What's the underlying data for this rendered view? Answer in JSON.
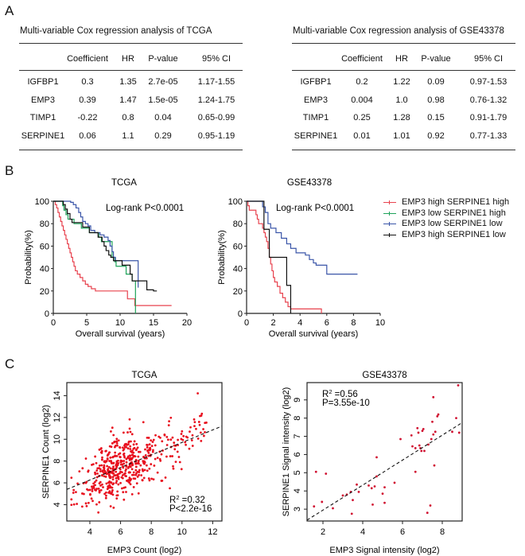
{
  "panels": {
    "a": "A",
    "b": "B",
    "c": "C"
  },
  "tables": [
    {
      "title": "Multi-variable Cox regression analysis of TCGA",
      "columns": [
        "",
        "Coefficient",
        "HR",
        "P-value",
        "95% CI"
      ],
      "rows": [
        [
          "IGFBP1",
          "0.3",
          "1.35",
          "2.7e-05",
          "1.17-1.55"
        ],
        [
          "EMP3",
          "0.39",
          "1.47",
          "1.5e-05",
          "1.24-1.75"
        ],
        [
          "TIMP1",
          "-0.22",
          "0.8",
          "0.04",
          "0.65-0.99"
        ],
        [
          "SERPINE1",
          "0.06",
          "1.1",
          "0.29",
          "0.95-1.19"
        ]
      ]
    },
    {
      "title": "Multi-variable Cox regression analysis of GSE43378",
      "columns": [
        "",
        "Coefficient",
        "HR",
        "P-value",
        "95% CI"
      ],
      "rows": [
        [
          "IGFBP1",
          "0.2",
          "1.22",
          "0.09",
          "0.97-1.53"
        ],
        [
          "EMP3",
          "0.004",
          "1.0",
          "0.98",
          "0.76-1.32"
        ],
        [
          "TIMP1",
          "0.25",
          "1.28",
          "0.15",
          "0.91-1.79"
        ],
        [
          "SERPINE1",
          "0.01",
          "1.01",
          "0.92",
          "0.77-1.33"
        ]
      ]
    }
  ],
  "legend": [
    {
      "label": "EMP3 high SERPINE1 high",
      "color": "#e8434f"
    },
    {
      "label": "EMP3 low SERPINE1 high",
      "color": "#1fa35a"
    },
    {
      "label": "EMP3 low SERPINE1 low",
      "color": "#3a55a8"
    },
    {
      "label": "EMP3 high SERPINE1 low",
      "color": "#111111"
    }
  ],
  "chart_data": [
    {
      "type": "line",
      "subtype": "kaplan-meier",
      "title": "TCGA",
      "annotation": "Log-rank P<0.0001",
      "xlabel": "Overall survival (years)",
      "ylabel": "Probability(%)",
      "xlim": [
        0,
        20
      ],
      "ylim": [
        0,
        100
      ],
      "xticks": [
        0,
        5,
        10,
        15,
        20
      ],
      "yticks": [
        0,
        20,
        40,
        60,
        80,
        100
      ],
      "series": [
        {
          "name": "EMP3 high SERPINE1 high",
          "color": "#e8434f",
          "points": [
            [
              0,
              100
            ],
            [
              0.3,
              97
            ],
            [
              0.5,
              94
            ],
            [
              0.7,
              90
            ],
            [
              0.9,
              86
            ],
            [
              1.1,
              82
            ],
            [
              1.3,
              78
            ],
            [
              1.5,
              74
            ],
            [
              1.7,
              70
            ],
            [
              1.9,
              66
            ],
            [
              2.1,
              62
            ],
            [
              2.3,
              58
            ],
            [
              2.5,
              54
            ],
            [
              2.7,
              50
            ],
            [
              2.9,
              46
            ],
            [
              3.1,
              42
            ],
            [
              3.3,
              38
            ],
            [
              3.6,
              35
            ],
            [
              4.0,
              32
            ],
            [
              4.4,
              29
            ],
            [
              4.8,
              26
            ],
            [
              5.2,
              24
            ],
            [
              5.7,
              22
            ],
            [
              6.3,
              20
            ],
            [
              11.1,
              20
            ],
            [
              11.1,
              13
            ],
            [
              12.2,
              13
            ],
            [
              12.2,
              7
            ],
            [
              17.7,
              7
            ]
          ]
        },
        {
          "name": "EMP3 low SERPINE1 high",
          "color": "#1fa35a",
          "points": [
            [
              0,
              100
            ],
            [
              1.2,
              100
            ],
            [
              1.4,
              96
            ],
            [
              1.6,
              92
            ],
            [
              1.9,
              88
            ],
            [
              2.2,
              84
            ],
            [
              2.8,
              84
            ],
            [
              3.1,
              80
            ],
            [
              4.0,
              80
            ],
            [
              4.2,
              76
            ],
            [
              5.2,
              76
            ],
            [
              5.4,
              72
            ],
            [
              6.6,
              72
            ],
            [
              6.8,
              68
            ],
            [
              7.2,
              64
            ],
            [
              8.6,
              64
            ],
            [
              8.8,
              50
            ],
            [
              9.2,
              46
            ],
            [
              9.4,
              42
            ],
            [
              10.9,
              42
            ],
            [
              10.9,
              35
            ],
            [
              11.8,
              35
            ],
            [
              11.8,
              29
            ],
            [
              12.3,
              29
            ],
            [
              12.3,
              0
            ]
          ]
        },
        {
          "name": "EMP3 low SERPINE1 low",
          "color": "#3a55a8",
          "points": [
            [
              0,
              100
            ],
            [
              2.0,
              100
            ],
            [
              2.6,
              99
            ],
            [
              3.0,
              97
            ],
            [
              3.4,
              94
            ],
            [
              3.8,
              90
            ],
            [
              4.1,
              86
            ],
            [
              4.4,
              82
            ],
            [
              4.8,
              80
            ],
            [
              5.2,
              78
            ],
            [
              5.6,
              74
            ],
            [
              6.2,
              72
            ],
            [
              7.0,
              70
            ],
            [
              7.6,
              68
            ],
            [
              8.2,
              65
            ],
            [
              8.5,
              60
            ],
            [
              8.8,
              55
            ],
            [
              9.0,
              50
            ],
            [
              9.3,
              47
            ],
            [
              12.7,
              47
            ],
            [
              12.7,
              23
            ]
          ]
        },
        {
          "name": "EMP3 high SERPINE1 low",
          "color": "#111111",
          "points": [
            [
              0,
              100
            ],
            [
              1.5,
              97
            ],
            [
              1.8,
              93
            ],
            [
              2.1,
              89
            ],
            [
              2.5,
              84
            ],
            [
              2.8,
              81
            ],
            [
              4.1,
              81
            ],
            [
              4.4,
              77
            ],
            [
              5.4,
              72
            ],
            [
              6.4,
              72
            ],
            [
              6.7,
              68
            ],
            [
              7.3,
              64
            ],
            [
              7.6,
              60
            ],
            [
              7.9,
              56
            ],
            [
              8.3,
              52
            ],
            [
              8.6,
              50
            ],
            [
              9.0,
              47
            ],
            [
              10.0,
              47
            ],
            [
              10.3,
              43
            ],
            [
              11.3,
              43
            ],
            [
              11.5,
              35
            ],
            [
              11.8,
              29
            ],
            [
              14.0,
              29
            ],
            [
              14.0,
              21
            ],
            [
              15.0,
              21
            ],
            [
              15.0,
              20
            ],
            [
              15.5,
              20
            ]
          ]
        }
      ]
    },
    {
      "type": "line",
      "subtype": "kaplan-meier",
      "title": "GSE43378",
      "annotation": "Log-rank P<0.0001",
      "xlabel": "Overall survival (years)",
      "ylabel": "Probability(%)",
      "xlim": [
        0,
        10
      ],
      "ylim": [
        0,
        100
      ],
      "xticks": [
        0,
        2,
        4,
        6,
        8,
        10
      ],
      "yticks": [
        0,
        20,
        40,
        60,
        80,
        100
      ],
      "series": [
        {
          "name": "EMP3 high SERPINE1 high",
          "color": "#e8434f",
          "points": [
            [
              0,
              100
            ],
            [
              0.1,
              96
            ],
            [
              0.2,
              92
            ],
            [
              0.6,
              92
            ],
            [
              0.7,
              88
            ],
            [
              0.8,
              84
            ],
            [
              0.9,
              80
            ],
            [
              1.1,
              80
            ],
            [
              1.2,
              76
            ],
            [
              1.3,
              72
            ],
            [
              1.4,
              68
            ],
            [
              1.5,
              64
            ],
            [
              1.6,
              58
            ],
            [
              1.7,
              50
            ],
            [
              1.8,
              44
            ],
            [
              1.9,
              38
            ],
            [
              2.0,
              32
            ],
            [
              2.1,
              28
            ],
            [
              2.3,
              24
            ],
            [
              2.5,
              18
            ],
            [
              2.7,
              14
            ],
            [
              2.9,
              10
            ],
            [
              3.1,
              6
            ],
            [
              3.3,
              4
            ],
            [
              5.6,
              4
            ],
            [
              5.6,
              0
            ]
          ]
        },
        {
          "name": "EMP3 low SERPINE1 high",
          "color": "#1fa35a",
          "points": []
        },
        {
          "name": "EMP3 low SERPINE1 low",
          "color": "#3a55a8",
          "points": [
            [
              0,
              100
            ],
            [
              1.0,
              100
            ],
            [
              1.2,
              95
            ],
            [
              1.4,
              90
            ],
            [
              1.6,
              80
            ],
            [
              1.8,
              76
            ],
            [
              2.2,
              72
            ],
            [
              2.6,
              67
            ],
            [
              3.0,
              62
            ],
            [
              3.3,
              58
            ],
            [
              3.7,
              54
            ],
            [
              4.4,
              52
            ],
            [
              4.7,
              48
            ],
            [
              5.0,
              45
            ],
            [
              5.2,
              43
            ],
            [
              5.9,
              43
            ],
            [
              6.0,
              35
            ],
            [
              8.3,
              35
            ]
          ]
        },
        {
          "name": "EMP3 high SERPINE1 low",
          "color": "#111111",
          "points": [
            [
              0,
              100
            ],
            [
              1.3,
              100
            ],
            [
              1.3,
              75
            ],
            [
              1.7,
              75
            ],
            [
              1.7,
              50
            ],
            [
              3.0,
              50
            ],
            [
              3.0,
              25
            ],
            [
              3.3,
              25
            ],
            [
              3.3,
              0
            ]
          ]
        }
      ]
    },
    {
      "type": "scatter",
      "title": "TCGA",
      "xlabel": "EMP3 Count (log2)",
      "ylabel": "SERPINE1 Count (log2)",
      "xlim": [
        2.5,
        12.6
      ],
      "ylim": [
        2.5,
        15.2
      ],
      "xticks": [
        4,
        6,
        8,
        10,
        12
      ],
      "yticks": [
        4,
        6,
        8,
        10,
        12,
        14
      ],
      "annotation": {
        "r2_label": "R",
        "r2_sup": "2",
        "r2_value": " =0.32",
        "p": "P<2.2e-16"
      },
      "fit_line": [
        [
          2.5,
          5.4
        ],
        [
          12.6,
          11.2
        ]
      ],
      "point_color": "#e8101e",
      "n_points_approx": 520,
      "distribution_note": "dense cloud centered near (5.5, 7.3), spread sd~1.6 in x, ~1.8 in y, with positive trend"
    },
    {
      "type": "scatter",
      "title": "GSE43378",
      "xlabel": "EMP3 Signal intensity (log2)",
      "ylabel": "SERPINE1 Signal intensity (log2)",
      "xlim": [
        1.2,
        9.0
      ],
      "ylim": [
        2.35,
        9.95
      ],
      "xticks": [
        2,
        4,
        6,
        8
      ],
      "yticks": [
        3,
        4,
        5,
        6,
        7,
        8,
        9
      ],
      "annotation": {
        "r2_label": "R",
        "r2_sup": "2",
        "r2_value": " =0.56",
        "p": "P=3.55e-10"
      },
      "fit_line": [
        [
          1.2,
          2.4
        ],
        [
          9.0,
          7.75
        ]
      ],
      "point_color": "#d01030",
      "points": [
        [
          1.55,
          3.15
        ],
        [
          1.65,
          5.05
        ],
        [
          1.95,
          3.4
        ],
        [
          2.15,
          4.95
        ],
        [
          2.5,
          3.05
        ],
        [
          3.0,
          3.75
        ],
        [
          3.2,
          3.8
        ],
        [
          3.4,
          3.95
        ],
        [
          3.45,
          2.75
        ],
        [
          3.5,
          3.5
        ],
        [
          3.7,
          4.35
        ],
        [
          3.8,
          3.95
        ],
        [
          4.3,
          4.3
        ],
        [
          4.45,
          4.15
        ],
        [
          4.5,
          3.25
        ],
        [
          4.6,
          4.25
        ],
        [
          4.7,
          5.85
        ],
        [
          4.7,
          4.8
        ],
        [
          5.0,
          3.85
        ],
        [
          5.1,
          4.2
        ],
        [
          5.1,
          3.35
        ],
        [
          5.6,
          4.45
        ],
        [
          5.9,
          6.85
        ],
        [
          6.45,
          7.05
        ],
        [
          6.5,
          6.45
        ],
        [
          6.65,
          6.35
        ],
        [
          6.65,
          5.05
        ],
        [
          6.75,
          7.45
        ],
        [
          6.8,
          7.2
        ],
        [
          6.85,
          6.5
        ],
        [
          6.9,
          6.35
        ],
        [
          6.95,
          6.2
        ],
        [
          7.0,
          7.3
        ],
        [
          7.05,
          7.4
        ],
        [
          7.1,
          6.2
        ],
        [
          7.25,
          2.8
        ],
        [
          7.3,
          6.55
        ],
        [
          7.4,
          3.2
        ],
        [
          7.45,
          6.85
        ],
        [
          7.5,
          7.8
        ],
        [
          7.55,
          9.15
        ],
        [
          7.55,
          7.1
        ],
        [
          7.6,
          5.4
        ],
        [
          7.65,
          7.25
        ],
        [
          7.75,
          8.1
        ],
        [
          7.8,
          8.2
        ],
        [
          8.5,
          7.25
        ],
        [
          8.7,
          8.0
        ],
        [
          8.8,
          9.8
        ],
        [
          8.85,
          7.2
        ]
      ]
    }
  ]
}
